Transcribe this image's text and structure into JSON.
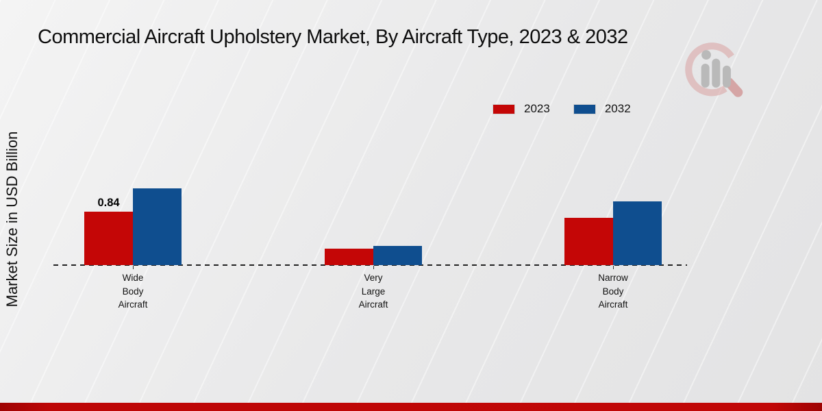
{
  "page": {
    "title": "Commercial Aircraft Upholstery Market, By Aircraft Type, 2023 & 2032",
    "y_axis_label": "Market Size in USD Billion"
  },
  "legend": {
    "items": [
      {
        "label": "2023",
        "color": "#c40606"
      },
      {
        "label": "2032",
        "color": "#0f4e8f"
      }
    ]
  },
  "chart_data": {
    "type": "bar",
    "title": "Commercial Aircraft Upholstery Market, By Aircraft Type, 2023 & 2032",
    "ylabel": "Market Size in USD Billion",
    "unit": "USD Billion",
    "categories": [
      "Wide\nBody\nAircraft",
      "Very\nLarge\nAircraft",
      "Narrow\nBody\nAircraft"
    ],
    "series": [
      {
        "name": "2023",
        "color": "#c40606",
        "values": [
          0.84,
          0.26,
          0.74
        ]
      },
      {
        "name": "2032",
        "color": "#0f4e8f",
        "values": [
          1.21,
          0.3,
          1.0
        ]
      }
    ],
    "annotations": [
      {
        "text": "0.84",
        "series_index": 0,
        "category_index": 0
      }
    ],
    "ylim": [
      0,
      1.4
    ],
    "grid": false,
    "legend_position": "top-right",
    "baseline_style": "dashed",
    "colors": {
      "series_2023": "#c40606",
      "series_2032": "#0f4e8f",
      "footer_band": "#c10707"
    }
  }
}
